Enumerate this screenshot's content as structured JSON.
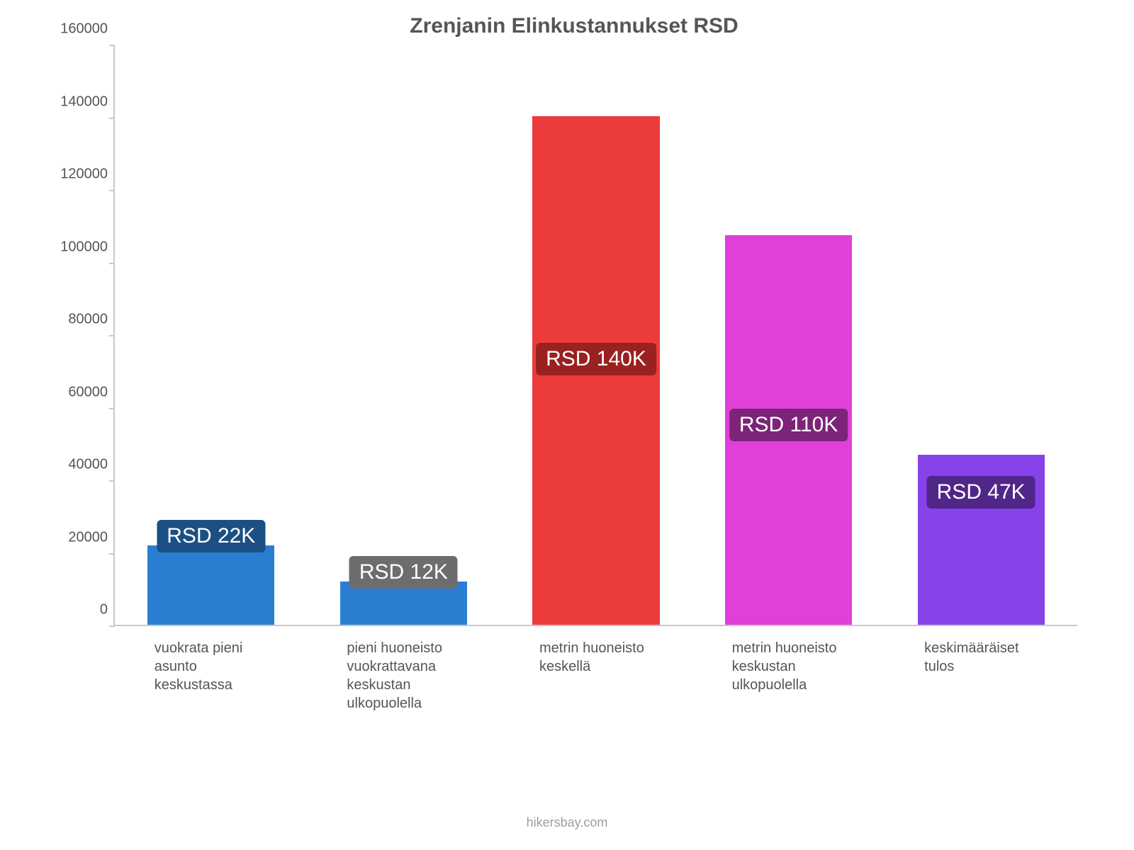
{
  "chart": {
    "type": "bar",
    "title": "Zrenjanin Elinkustannukset RSD",
    "title_fontsize": 30,
    "title_color": "#555555",
    "background_color": "#ffffff",
    "axis_color": "#c9c9c9",
    "ylim": [
      0,
      160000
    ],
    "ytick_step": 20000,
    "yticks": [
      0,
      20000,
      40000,
      60000,
      80000,
      100000,
      120000,
      140000,
      160000
    ],
    "ytick_fontsize": 20,
    "xlabel_fontsize": 20,
    "bar_width_pct": 66,
    "bar_label_fontsize": 30,
    "credit": "hikersbay.com",
    "credit_fontsize": 18,
    "bars": [
      {
        "category": "vuokrata pieni asunto keskustassa",
        "value": 22000,
        "label": "RSD 22K",
        "bar_color": "#2a7ed2",
        "label_bg": "#1c4f84",
        "label_offset": -36
      },
      {
        "category": "pieni huoneisto vuokrattavana keskustan ulkopuolella",
        "value": 12000,
        "label": "RSD 12K",
        "bar_color": "#2a7ed2",
        "label_bg": "#6d6d6d",
        "label_offset": -36
      },
      {
        "category": "metrin huoneisto keskellä",
        "value": 140500,
        "label": "RSD 140K",
        "bar_color": "#eb3b3a",
        "label_bg": "#992120",
        "label_offset": 320
      },
      {
        "category": "metrin huoneisto keskustan ulkopuolella",
        "value": 107500,
        "label": "RSD 110K",
        "bar_color": "#e040d8",
        "label_bg": "#7d2378",
        "label_offset": 245
      },
      {
        "category": "keskimääräiset tulos",
        "value": 47000,
        "label": "RSD 47K",
        "bar_color": "#8842ea",
        "label_bg": "#502689",
        "label_offset": 30
      }
    ]
  }
}
